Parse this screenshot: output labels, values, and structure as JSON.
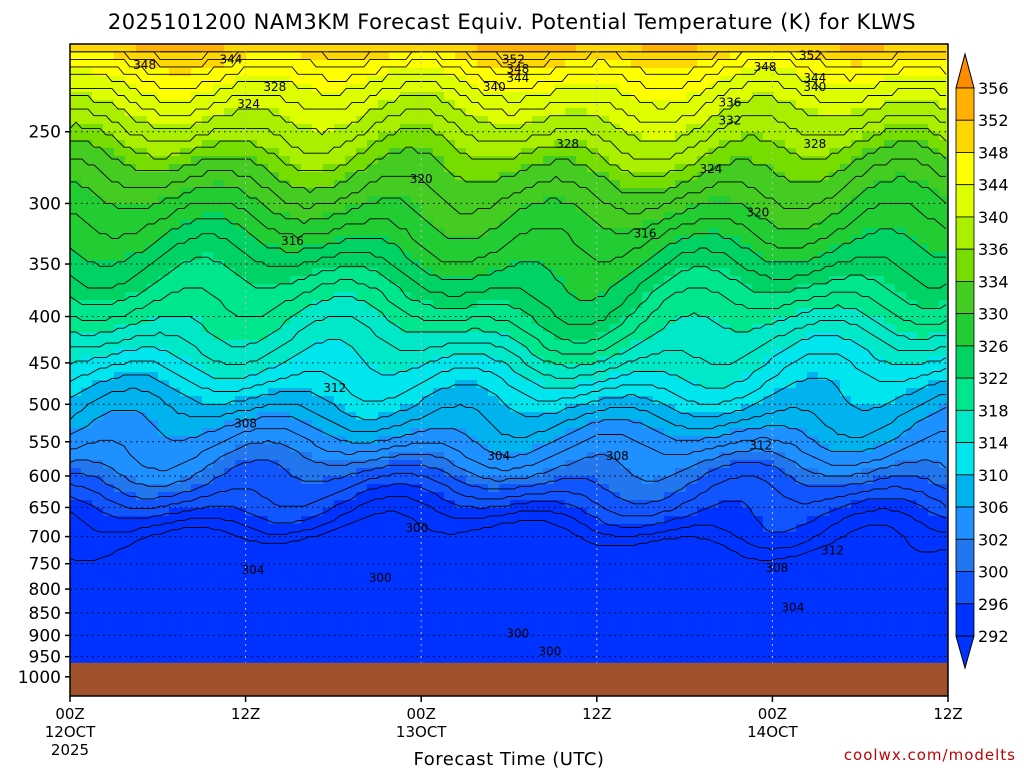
{
  "chart_data": {
    "type": "heatmap",
    "title": "2025101200 NAM3KM Forecast Equiv. Potential Temperature (K) for KLWS",
    "xlabel": "Forecast Time (UTC)",
    "ylabel": "",
    "credit": "coolwx.com/modelts",
    "x_ticks": [
      {
        "hour": 0,
        "label": "00Z",
        "sub": "12OCT",
        "sub2": "2025"
      },
      {
        "hour": 12,
        "label": "12Z",
        "sub": "",
        "sub2": ""
      },
      {
        "hour": 24,
        "label": "00Z",
        "sub": "13OCT",
        "sub2": ""
      },
      {
        "hour": 36,
        "label": "12Z",
        "sub": "",
        "sub2": ""
      },
      {
        "hour": 48,
        "label": "00Z",
        "sub": "14OCT",
        "sub2": ""
      },
      {
        "hour": 60,
        "label": "12Z",
        "sub": "",
        "sub2": ""
      }
    ],
    "xlim_hours": [
      0,
      60
    ],
    "y_ticks": [
      250,
      300,
      350,
      400,
      450,
      500,
      550,
      600,
      650,
      700,
      750,
      800,
      850,
      900,
      950,
      1000
    ],
    "ylim_hpa": [
      200,
      1050
    ],
    "y_scale": "log-pressure",
    "ground_level_hpa": 965,
    "ground_color": "#a0522d",
    "grid": true,
    "colorbar": {
      "levels": [
        292,
        296,
        300,
        302,
        306,
        310,
        314,
        318,
        322,
        326,
        330,
        334,
        336,
        340,
        344,
        348,
        352,
        356
      ],
      "labels": [
        "356",
        "352",
        "348",
        "344",
        "340",
        "336",
        "334",
        "330",
        "326",
        "322",
        "318",
        "314",
        "310",
        "306",
        "302",
        "300",
        "296",
        "292"
      ],
      "colors": [
        "#0033ff",
        "#1155ff",
        "#2277ee",
        "#1e90ff",
        "#00b2ee",
        "#00e5ee",
        "#00e8c8",
        "#00e68c",
        "#00d264",
        "#22cc33",
        "#44cc22",
        "#77dd00",
        "#aaee00",
        "#ddff00",
        "#ffff00",
        "#ffd700",
        "#ffb000",
        "#ff8c00"
      ],
      "placement": "right"
    },
    "contour_labels": [
      {
        "text": "352",
        "hour": 30.3,
        "hpa": 208
      },
      {
        "text": "352",
        "hour": 50.6,
        "hpa": 206
      },
      {
        "text": "348",
        "hour": 5.1,
        "hpa": 211
      },
      {
        "text": "344",
        "hour": 11.0,
        "hpa": 208
      },
      {
        "text": "348",
        "hour": 30.6,
        "hpa": 213
      },
      {
        "text": "344",
        "hour": 30.6,
        "hpa": 218
      },
      {
        "text": "340",
        "hour": 29.0,
        "hpa": 223
      },
      {
        "text": "348",
        "hour": 47.5,
        "hpa": 212
      },
      {
        "text": "344",
        "hour": 50.9,
        "hpa": 218
      },
      {
        "text": "340",
        "hour": 50.9,
        "hpa": 223
      },
      {
        "text": "328",
        "hour": 14.0,
        "hpa": 223
      },
      {
        "text": "324",
        "hour": 12.2,
        "hpa": 233
      },
      {
        "text": "336",
        "hour": 45.1,
        "hpa": 232
      },
      {
        "text": "332",
        "hour": 45.1,
        "hpa": 243
      },
      {
        "text": "328",
        "hour": 34.0,
        "hpa": 258
      },
      {
        "text": "328",
        "hour": 50.9,
        "hpa": 258
      },
      {
        "text": "324",
        "hour": 43.8,
        "hpa": 275
      },
      {
        "text": "320",
        "hour": 24.0,
        "hpa": 282
      },
      {
        "text": "320",
        "hour": 47.0,
        "hpa": 307
      },
      {
        "text": "316",
        "hour": 15.2,
        "hpa": 330
      },
      {
        "text": "316",
        "hour": 39.3,
        "hpa": 324
      },
      {
        "text": "312",
        "hour": 18.1,
        "hpa": 480
      },
      {
        "text": "308",
        "hour": 12.0,
        "hpa": 525
      },
      {
        "text": "304",
        "hour": 29.3,
        "hpa": 570
      },
      {
        "text": "308",
        "hour": 37.4,
        "hpa": 570
      },
      {
        "text": "312",
        "hour": 47.2,
        "hpa": 555
      },
      {
        "text": "300",
        "hour": 23.7,
        "hpa": 685
      },
      {
        "text": "312",
        "hour": 52.1,
        "hpa": 725
      },
      {
        "text": "304",
        "hour": 12.5,
        "hpa": 762
      },
      {
        "text": "300",
        "hour": 21.2,
        "hpa": 778
      },
      {
        "text": "308",
        "hour": 48.3,
        "hpa": 758
      },
      {
        "text": "304",
        "hour": 49.4,
        "hpa": 838
      },
      {
        "text": "300",
        "hour": 30.6,
        "hpa": 896
      },
      {
        "text": "300",
        "hour": 32.8,
        "hpa": 938
      }
    ]
  }
}
